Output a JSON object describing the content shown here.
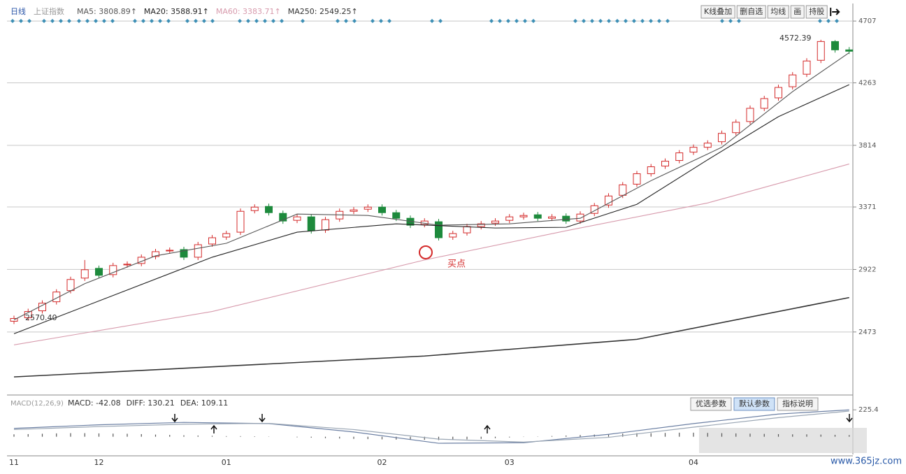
{
  "chart_data": {
    "type": "candlestick",
    "period": "日线",
    "symbol": "上证指数",
    "ylim": [
      2030,
      4808
    ],
    "yticks": [
      2473,
      2922,
      3371,
      3814,
      4263,
      4707
    ],
    "grid": true,
    "categories": [
      "11",
      null,
      null,
      null,
      null,
      null,
      "12",
      null,
      null,
      null,
      null,
      null,
      null,
      null,
      null,
      "01",
      null,
      null,
      null,
      null,
      null,
      null,
      null,
      null,
      null,
      null,
      "02",
      null,
      null,
      null,
      null,
      null,
      null,
      null,
      null,
      "03",
      null,
      null,
      null,
      null,
      null,
      null,
      null,
      null,
      null,
      null,
      null,
      null,
      "04",
      null,
      null,
      null,
      null,
      null,
      null,
      null,
      null,
      null,
      null,
      null
    ],
    "up_color": "#d42a2a",
    "down_color": "#1d8a3c",
    "candles": {
      "open": [
        2550,
        2575,
        2625,
        2690,
        2770,
        2860,
        2930,
        2885,
        2955,
        2965,
        3015,
        3055,
        3065,
        3010,
        3105,
        3155,
        3190,
        3345,
        3375,
        3325,
        3275,
        3300,
        3205,
        3285,
        3340,
        3355,
        3370,
        3330,
        3290,
        3245,
        3265,
        3155,
        3185,
        3230,
        3255,
        3275,
        3300,
        3315,
        3290,
        3305,
        3270,
        3325,
        3385,
        3455,
        3535,
        3610,
        3665,
        3705,
        3765,
        3800,
        3840,
        3905,
        3985,
        4080,
        4155,
        4235,
        4325,
        4425,
        4560,
        4500
      ],
      "high": [
        2590,
        2640,
        2700,
        2780,
        2870,
        2990,
        2950,
        2970,
        2980,
        3030,
        3070,
        3080,
        3085,
        3120,
        3170,
        3200,
        3360,
        3390,
        3395,
        3345,
        3320,
        3320,
        3300,
        3360,
        3370,
        3390,
        3390,
        3350,
        3310,
        3290,
        3285,
        3200,
        3250,
        3270,
        3290,
        3320,
        3330,
        3335,
        3320,
        3325,
        3340,
        3400,
        3470,
        3550,
        3630,
        3680,
        3720,
        3780,
        3820,
        3850,
        3920,
        4000,
        4100,
        4170,
        4250,
        4340,
        4440,
        4572.39,
        4570,
        4520
      ],
      "low": [
        2530,
        2555,
        2605,
        2670,
        2750,
        2840,
        2860,
        2865,
        2935,
        2945,
        2995,
        3035,
        2990,
        2990,
        3085,
        3135,
        3170,
        3325,
        3310,
        3250,
        3255,
        3180,
        3185,
        3265,
        3320,
        3335,
        3310,
        3270,
        3220,
        3225,
        3130,
        3135,
        3165,
        3210,
        3235,
        3255,
        3280,
        3270,
        3270,
        3250,
        3250,
        3305,
        3365,
        3435,
        3515,
        3590,
        3645,
        3685,
        3745,
        3780,
        3820,
        3885,
        3965,
        4060,
        4135,
        4215,
        4305,
        4405,
        4480,
        4470
      ],
      "close": [
        2570,
        2620,
        2680,
        2760,
        2850,
        2920,
        2880,
        2950,
        2960,
        3010,
        3050,
        3060,
        3010,
        3100,
        3150,
        3180,
        3340,
        3370,
        3330,
        3270,
        3300,
        3200,
        3280,
        3340,
        3350,
        3370,
        3330,
        3290,
        3240,
        3270,
        3150,
        3180,
        3230,
        3250,
        3270,
        3300,
        3310,
        3290,
        3300,
        3270,
        3320,
        3380,
        3450,
        3530,
        3610,
        3660,
        3700,
        3760,
        3800,
        3830,
        3900,
        3980,
        4080,
        4150,
        4230,
        4320,
        4420,
        4560,
        4500,
        4490
      ]
    },
    "series": [
      {
        "name": "MA5: 3808.89↑",
        "color": "#555555",
        "x": [
          0,
          5,
          10,
          15,
          20,
          25,
          30,
          35,
          40,
          45,
          50,
          55,
          59
        ],
        "values": [
          2560,
          2820,
          3020,
          3110,
          3320,
          3310,
          3240,
          3250,
          3290,
          3560,
          3800,
          4200,
          4480
        ]
      },
      {
        "name": "MA20: 3588.91↑",
        "color": "#222222",
        "x": [
          0,
          14,
          20,
          27,
          34,
          39,
          44,
          49,
          54,
          59
        ],
        "values": [
          2460,
          3010,
          3190,
          3250,
          3220,
          3225,
          3390,
          3710,
          4020,
          4250
        ]
      },
      {
        "name": "MA60: 3383.71↑",
        "color": "#d79aac",
        "x": [
          0,
          14,
          29,
          39,
          49,
          59
        ],
        "values": [
          2380,
          2620,
          2990,
          3200,
          3400,
          3680
        ]
      },
      {
        "name": "MA250: 2549.25↑",
        "color": "#333333",
        "x": [
          0,
          29,
          44,
          59
        ],
        "values": [
          2150,
          2300,
          2420,
          2720
        ]
      }
    ],
    "annotations": [
      "2570.40",
      "4572.39",
      "买点"
    ],
    "macd": {
      "title": "MACD(12,26,9)",
      "label": "MACD: -42.08",
      "ylim": [
        -160,
        250
      ],
      "yticks": [
        225.4
      ],
      "bar_color": "#555555",
      "histogram": [
        20,
        22,
        25,
        28,
        30,
        30,
        28,
        26,
        25,
        22,
        18,
        15,
        12,
        10,
        8,
        5,
        5,
        4,
        2,
        0,
        -5,
        -8,
        -12,
        -15,
        -18,
        -20,
        -22,
        -24,
        -25,
        -26,
        -28,
        -26,
        -22,
        -18,
        -12,
        -6,
        -2,
        2,
        6,
        10,
        14,
        18,
        22,
        26,
        30,
        30,
        32,
        34,
        34,
        32,
        30,
        28,
        26,
        24,
        22,
        20,
        20,
        18,
        16,
        14
      ],
      "series": [
        {
          "name": "DIFF: 130.21",
          "color": "#6b7fa3",
          "x": [
            0,
            6,
            12,
            18,
            24,
            30,
            36,
            42,
            48,
            54,
            59
          ],
          "values": [
            70,
            100,
            120,
            110,
            40,
            -55,
            -50,
            20,
            110,
            190,
            225
          ]
        },
        {
          "name": "DEA: 109.11",
          "color": "#9aa6b4",
          "x": [
            0,
            6,
            12,
            18,
            24,
            30,
            36,
            42,
            48,
            54,
            59
          ],
          "values": [
            60,
            85,
            105,
            112,
            60,
            -20,
            -45,
            -5,
            80,
            160,
            215
          ]
        }
      ]
    }
  },
  "toolbar": [
    "K线叠加",
    "删自选",
    "均线",
    "画",
    "持股"
  ],
  "indicator_buttons": [
    "优选参数",
    "默认参数",
    "指标说明"
  ],
  "watermark": "www.365jz.com"
}
